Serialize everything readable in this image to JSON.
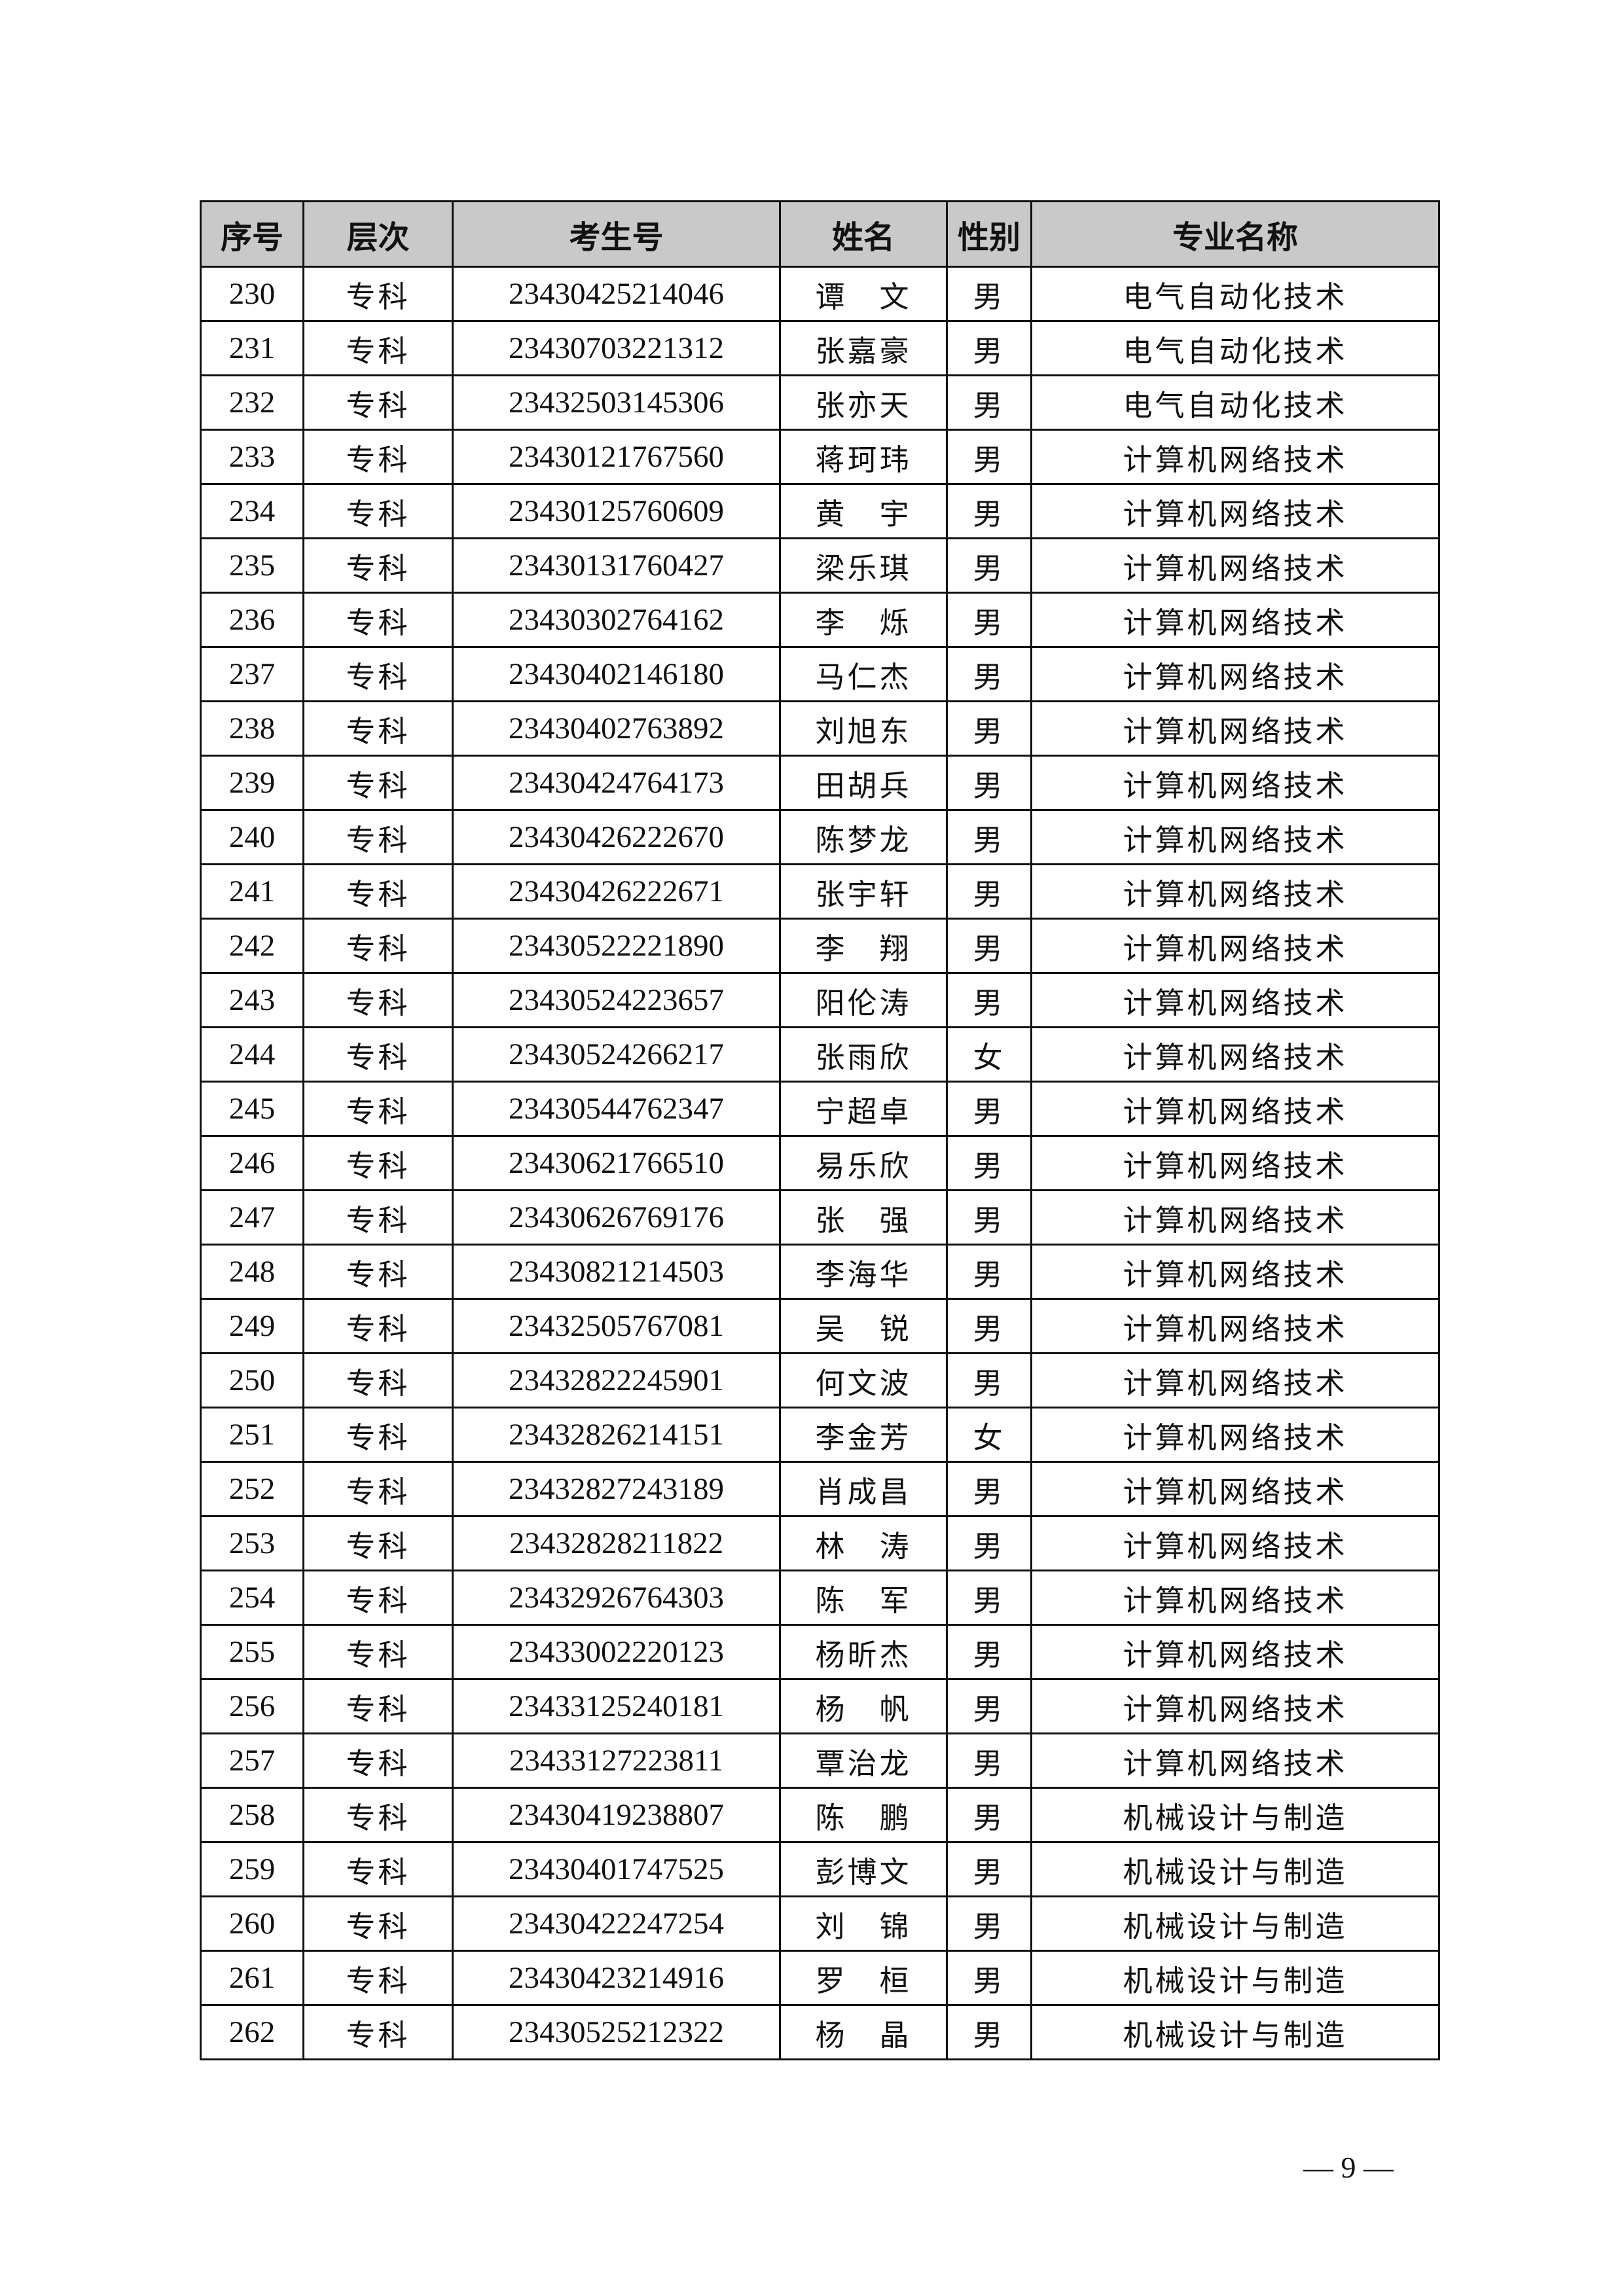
{
  "table": {
    "headers": [
      "序号",
      "层次",
      "考生号",
      "姓名",
      "性别",
      "专业名称"
    ],
    "rows": [
      [
        "230",
        "专科",
        "23430425214046",
        "谭　文",
        "男",
        "电气自动化技术"
      ],
      [
        "231",
        "专科",
        "23430703221312",
        "张嘉豪",
        "男",
        "电气自动化技术"
      ],
      [
        "232",
        "专科",
        "23432503145306",
        "张亦天",
        "男",
        "电气自动化技术"
      ],
      [
        "233",
        "专科",
        "23430121767560",
        "蒋珂玮",
        "男",
        "计算机网络技术"
      ],
      [
        "234",
        "专科",
        "23430125760609",
        "黄　宇",
        "男",
        "计算机网络技术"
      ],
      [
        "235",
        "专科",
        "23430131760427",
        "梁乐琪",
        "男",
        "计算机网络技术"
      ],
      [
        "236",
        "专科",
        "23430302764162",
        "李　烁",
        "男",
        "计算机网络技术"
      ],
      [
        "237",
        "专科",
        "23430402146180",
        "马仁杰",
        "男",
        "计算机网络技术"
      ],
      [
        "238",
        "专科",
        "23430402763892",
        "刘旭东",
        "男",
        "计算机网络技术"
      ],
      [
        "239",
        "专科",
        "23430424764173",
        "田胡兵",
        "男",
        "计算机网络技术"
      ],
      [
        "240",
        "专科",
        "23430426222670",
        "陈梦龙",
        "男",
        "计算机网络技术"
      ],
      [
        "241",
        "专科",
        "23430426222671",
        "张宇轩",
        "男",
        "计算机网络技术"
      ],
      [
        "242",
        "专科",
        "23430522221890",
        "李　翔",
        "男",
        "计算机网络技术"
      ],
      [
        "243",
        "专科",
        "23430524223657",
        "阳伦涛",
        "男",
        "计算机网络技术"
      ],
      [
        "244",
        "专科",
        "23430524266217",
        "张雨欣",
        "女",
        "计算机网络技术"
      ],
      [
        "245",
        "专科",
        "23430544762347",
        "宁超卓",
        "男",
        "计算机网络技术"
      ],
      [
        "246",
        "专科",
        "23430621766510",
        "易乐欣",
        "男",
        "计算机网络技术"
      ],
      [
        "247",
        "专科",
        "23430626769176",
        "张　强",
        "男",
        "计算机网络技术"
      ],
      [
        "248",
        "专科",
        "23430821214503",
        "李海华",
        "男",
        "计算机网络技术"
      ],
      [
        "249",
        "专科",
        "23432505767081",
        "吴　锐",
        "男",
        "计算机网络技术"
      ],
      [
        "250",
        "专科",
        "23432822245901",
        "何文波",
        "男",
        "计算机网络技术"
      ],
      [
        "251",
        "专科",
        "23432826214151",
        "李金芳",
        "女",
        "计算机网络技术"
      ],
      [
        "252",
        "专科",
        "23432827243189",
        "肖成昌",
        "男",
        "计算机网络技术"
      ],
      [
        "253",
        "专科",
        "23432828211822",
        "林　涛",
        "男",
        "计算机网络技术"
      ],
      [
        "254",
        "专科",
        "23432926764303",
        "陈　军",
        "男",
        "计算机网络技术"
      ],
      [
        "255",
        "专科",
        "23433002220123",
        "杨昕杰",
        "男",
        "计算机网络技术"
      ],
      [
        "256",
        "专科",
        "23433125240181",
        "杨　帆",
        "男",
        "计算机网络技术"
      ],
      [
        "257",
        "专科",
        "23433127223811",
        "覃治龙",
        "男",
        "计算机网络技术"
      ],
      [
        "258",
        "专科",
        "23430419238807",
        "陈　鹏",
        "男",
        "机械设计与制造"
      ],
      [
        "259",
        "专科",
        "23430401747525",
        "彭博文",
        "男",
        "机械设计与制造"
      ],
      [
        "260",
        "专科",
        "23430422247254",
        "刘　锦",
        "男",
        "机械设计与制造"
      ],
      [
        "261",
        "专科",
        "23430423214916",
        "罗　桓",
        "男",
        "机械设计与制造"
      ],
      [
        "262",
        "专科",
        "23430525212322",
        "杨　晶",
        "男",
        "机械设计与制造"
      ]
    ]
  },
  "footer": {
    "page_number": "— 9 —"
  }
}
